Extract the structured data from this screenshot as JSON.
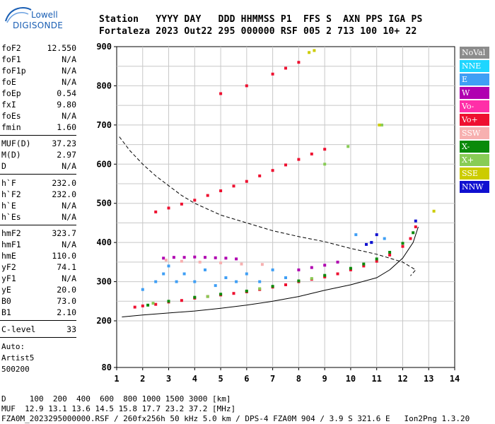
{
  "logo": {
    "line1": "Lowell",
    "line2": "DIGISONDE"
  },
  "header": {
    "line1": "Station   YYYY DAY   DDD HHMMSS P1  FFS S  AXN PPS IGA PS",
    "line2": "Fortaleza 2023 Out22 295 000000 RSF 005 2 713 100 10+ 22"
  },
  "params": {
    "group1": [
      {
        "k": "foF2",
        "v": "12.550"
      },
      {
        "k": "foF1",
        "v": "N/A"
      },
      {
        "k": "foF1p",
        "v": "N/A"
      },
      {
        "k": "foE",
        "v": "N/A"
      },
      {
        "k": "foEp",
        "v": "0.54"
      },
      {
        "k": "fxI",
        "v": "9.80"
      },
      {
        "k": "foEs",
        "v": "N/A"
      },
      {
        "k": "fmin",
        "v": "1.60"
      }
    ],
    "group2": [
      {
        "k": "MUF(D)",
        "v": "37.23"
      },
      {
        "k": "M(D)",
        "v": "2.97"
      },
      {
        "k": "D",
        "v": "N/A"
      }
    ],
    "group3": [
      {
        "k": "h`F",
        "v": "232.0"
      },
      {
        "k": "h`F2",
        "v": "232.0"
      },
      {
        "k": "h`E",
        "v": "N/A"
      },
      {
        "k": "h`Es",
        "v": "N/A"
      }
    ],
    "group4": [
      {
        "k": "hmF2",
        "v": "323.7"
      },
      {
        "k": "hmF1",
        "v": "N/A"
      },
      {
        "k": "hmE",
        "v": "110.0"
      },
      {
        "k": "yF2",
        "v": "74.1"
      },
      {
        "k": "yF1",
        "v": "N/A"
      },
      {
        "k": "yE",
        "v": "20.0"
      },
      {
        "k": "B0",
        "v": "73.0"
      },
      {
        "k": "B1",
        "v": "2.10"
      }
    ],
    "group5": [
      {
        "k": "C-level",
        "v": "33"
      }
    ]
  },
  "auto": {
    "line1": "Auto:",
    "line2": "Artist5",
    "line3": "500200"
  },
  "legend": [
    {
      "label": "NoVal",
      "bg": "#8c8c8c",
      "fg": "#ffffff"
    },
    {
      "label": "NNE",
      "bg": "#1ed6ff",
      "fg": "#ffffff"
    },
    {
      "label": "E",
      "bg": "#3f9ff5",
      "fg": "#ffffff"
    },
    {
      "label": "W",
      "bg": "#b000b0",
      "fg": "#ffffff"
    },
    {
      "label": "Vo-",
      "bg": "#ff2fa8",
      "fg": "#ffffff"
    },
    {
      "label": "Vo+",
      "bg": "#ee1030",
      "fg": "#ffffff"
    },
    {
      "label": "SSW",
      "bg": "#f7b0b0",
      "fg": "#ffffff"
    },
    {
      "label": "X-",
      "bg": "#0a8a0a",
      "fg": "#ffffff"
    },
    {
      "label": "X+",
      "bg": "#88cc55",
      "fg": "#ffffff"
    },
    {
      "label": "SSE",
      "bg": "#cccc00",
      "fg": "#ffffff"
    },
    {
      "label": "NNW",
      "bg": "#1010d0",
      "fg": "#ffffff"
    }
  ],
  "footer": {
    "line1": "D     100  200  400  600  800 1000 1500 3000 [km]",
    "line2": "MUF  12.9 13.1 13.6 14.5 15.8 17.7 23.2 37.2 [MHz]",
    "line3": "FZA0M_2023295000000.RSF / 260fx256h 50 kHz 5.0 km / DPS-4 FZA0M 904 / 3.9 S 321.6 E   Ion2Png 1.3.20"
  },
  "chart_data": {
    "type": "scatter",
    "xlabel": "",
    "ylabel": "",
    "xlim": [
      1,
      14
    ],
    "ylim": [
      80,
      900
    ],
    "xticks": [
      1,
      2,
      3,
      4,
      5,
      6,
      7,
      8,
      9,
      10,
      11,
      12,
      13,
      14
    ],
    "yticks": [
      80,
      200,
      300,
      400,
      500,
      600,
      700,
      800,
      900
    ],
    "grid": true,
    "series": [
      {
        "name": "Vo+",
        "color": "#ee1030",
        "points": [
          [
            1.7,
            235
          ],
          [
            2.0,
            238
          ],
          [
            2.5,
            242
          ],
          [
            3.0,
            248
          ],
          [
            3.5,
            252
          ],
          [
            4.0,
            258
          ],
          [
            4.5,
            262
          ],
          [
            5.0,
            266
          ],
          [
            5.5,
            270
          ],
          [
            6.0,
            274
          ],
          [
            6.5,
            280
          ],
          [
            7.0,
            286
          ],
          [
            7.5,
            292
          ],
          [
            8.0,
            300
          ],
          [
            8.5,
            306
          ],
          [
            9.0,
            312
          ],
          [
            9.5,
            320
          ],
          [
            10.0,
            330
          ],
          [
            10.5,
            340
          ],
          [
            11.0,
            352
          ],
          [
            11.5,
            368
          ],
          [
            12.0,
            390
          ],
          [
            12.3,
            410
          ],
          [
            12.5,
            440
          ],
          [
            2.5,
            478
          ],
          [
            3.0,
            488
          ],
          [
            3.5,
            498
          ],
          [
            4.0,
            508
          ],
          [
            4.5,
            520
          ],
          [
            5.0,
            532
          ],
          [
            5.5,
            544
          ],
          [
            6.0,
            556
          ],
          [
            6.5,
            570
          ],
          [
            7.0,
            584
          ],
          [
            7.5,
            598
          ],
          [
            8.0,
            612
          ],
          [
            8.5,
            626
          ],
          [
            9.0,
            638
          ],
          [
            5.0,
            780
          ],
          [
            6.0,
            800
          ],
          [
            7.0,
            830
          ],
          [
            7.5,
            845
          ],
          [
            8.0,
            860
          ]
        ]
      },
      {
        "name": "X-",
        "color": "#0a8a0a",
        "points": [
          [
            2.2,
            240
          ],
          [
            3.0,
            250
          ],
          [
            4.0,
            260
          ],
          [
            5.0,
            268
          ],
          [
            6.0,
            276
          ],
          [
            7.0,
            288
          ],
          [
            8.0,
            302
          ],
          [
            9.0,
            316
          ],
          [
            10.0,
            334
          ],
          [
            10.5,
            345
          ],
          [
            11.0,
            358
          ],
          [
            11.5,
            375
          ],
          [
            12.0,
            398
          ],
          [
            12.4,
            425
          ]
        ]
      },
      {
        "name": "W",
        "color": "#b000b0",
        "points": [
          [
            2.8,
            360
          ],
          [
            3.2,
            362
          ],
          [
            3.6,
            362
          ],
          [
            4.0,
            363
          ],
          [
            4.4,
            362
          ],
          [
            4.8,
            361
          ],
          [
            5.2,
            360
          ],
          [
            5.6,
            358
          ],
          [
            8.0,
            330
          ],
          [
            8.5,
            336
          ],
          [
            9.0,
            342
          ],
          [
            9.5,
            350
          ]
        ]
      },
      {
        "name": "E",
        "color": "#3f9ff5",
        "points": [
          [
            2.0,
            280
          ],
          [
            2.5,
            300
          ],
          [
            2.8,
            320
          ],
          [
            3.0,
            340
          ],
          [
            3.3,
            300
          ],
          [
            3.6,
            320
          ],
          [
            4.0,
            300
          ],
          [
            4.4,
            330
          ],
          [
            4.8,
            290
          ],
          [
            5.2,
            310
          ],
          [
            5.6,
            300
          ],
          [
            6.0,
            320
          ],
          [
            6.5,
            300
          ],
          [
            7.0,
            330
          ],
          [
            7.5,
            310
          ],
          [
            10.2,
            420
          ],
          [
            10.8,
            400
          ],
          [
            11.3,
            410
          ]
        ]
      },
      {
        "name": "SSW",
        "color": "#f7b0b0",
        "points": [
          [
            2.9,
            355
          ],
          [
            3.5,
            352
          ],
          [
            4.2,
            350
          ],
          [
            5.0,
            348
          ],
          [
            5.8,
            345
          ],
          [
            6.6,
            344
          ]
        ]
      },
      {
        "name": "X+",
        "color": "#88cc55",
        "points": [
          [
            2.4,
            245
          ],
          [
            4.5,
            262
          ],
          [
            6.5,
            282
          ],
          [
            8.5,
            308
          ],
          [
            9.0,
            600
          ],
          [
            9.9,
            645
          ],
          [
            11.2,
            700
          ]
        ]
      },
      {
        "name": "NNW",
        "color": "#1010d0",
        "points": [
          [
            10.6,
            395
          ],
          [
            10.8,
            400
          ],
          [
            11.0,
            420
          ],
          [
            12.5,
            455
          ]
        ]
      },
      {
        "name": "SSE",
        "color": "#cccc00",
        "points": [
          [
            8.4,
            885
          ],
          [
            8.6,
            890
          ],
          [
            11.1,
            700
          ],
          [
            13.2,
            480
          ]
        ]
      }
    ],
    "curves": [
      {
        "style": "dashed",
        "points": [
          [
            1.1,
            670
          ],
          [
            1.5,
            635
          ],
          [
            2.0,
            600
          ],
          [
            2.5,
            570
          ],
          [
            3.0,
            545
          ],
          [
            3.5,
            520
          ],
          [
            4.0,
            500
          ],
          [
            5.0,
            470
          ],
          [
            6.0,
            450
          ],
          [
            7.0,
            430
          ],
          [
            8.0,
            415
          ],
          [
            9.0,
            402
          ],
          [
            10.0,
            385
          ],
          [
            11.0,
            370
          ],
          [
            12.0,
            350
          ],
          [
            12.5,
            330
          ],
          [
            12.3,
            315
          ]
        ]
      },
      {
        "style": "solid",
        "points": [
          [
            1.2,
            210
          ],
          [
            2.0,
            215
          ],
          [
            3.0,
            220
          ],
          [
            4.0,
            225
          ],
          [
            5.0,
            232
          ],
          [
            6.0,
            240
          ],
          [
            7.0,
            250
          ],
          [
            8.0,
            262
          ],
          [
            9.0,
            278
          ],
          [
            10.0,
            292
          ],
          [
            11.0,
            310
          ],
          [
            11.5,
            330
          ],
          [
            12.0,
            360
          ],
          [
            12.4,
            400
          ],
          [
            12.6,
            440
          ]
        ]
      }
    ]
  }
}
